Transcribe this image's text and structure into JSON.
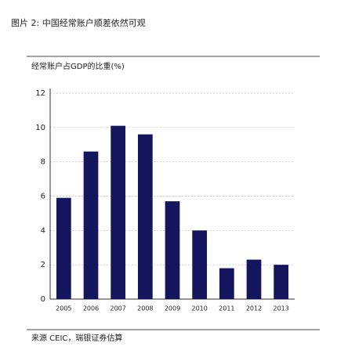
{
  "chart_data": {
    "type": "bar",
    "title": "图片 2: 中国经常账户顺差依然可观",
    "subtitle": "经常账户占GDP的比重(%)",
    "source": "来源 CEIC，瑞银证券估算",
    "categories": [
      "2005",
      "2006",
      "2007",
      "2008",
      "2009",
      "2010",
      "2011",
      "2012",
      "2013"
    ],
    "values": [
      5.9,
      8.6,
      10.1,
      9.6,
      5.7,
      4.0,
      1.8,
      2.3,
      2.0
    ],
    "color": "#15155e",
    "ylim": [
      0,
      12
    ],
    "yticks": [
      0,
      2,
      4,
      6,
      8,
      10,
      12
    ],
    "grid": true
  }
}
